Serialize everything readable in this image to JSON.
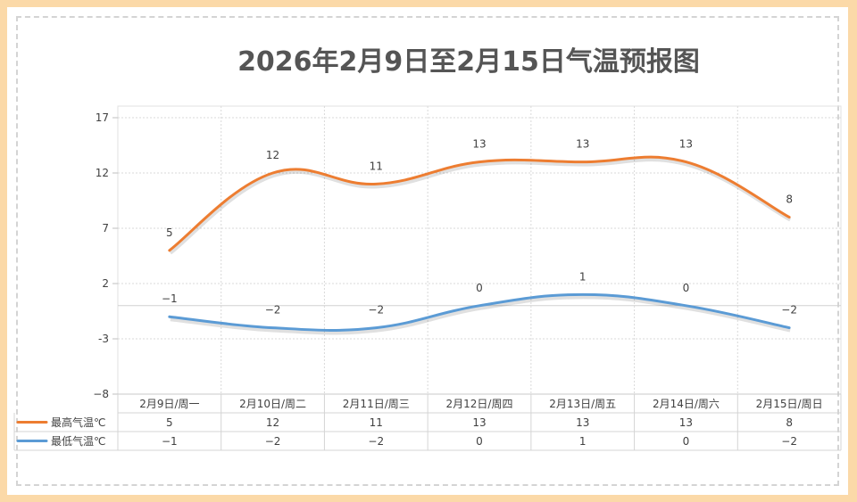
{
  "chart_data": {
    "type": "line",
    "title": "2026年2月9日至2月15日气温预报图",
    "categories": [
      "2月9日/周一",
      "2月10日/周二",
      "2月11日/周三",
      "2月12日/周四",
      "2月13日/周五",
      "2月14日/周六",
      "2月15日/周日"
    ],
    "series": [
      {
        "name": "最高气温℃",
        "values": [
          5,
          12,
          11,
          13,
          13,
          13,
          8
        ],
        "labels": [
          "5",
          "12",
          "11",
          "13",
          "13",
          "13",
          "8"
        ],
        "color": "#ed7d31"
      },
      {
        "name": "最低气温℃",
        "values": [
          -1,
          -2,
          -2,
          0,
          1,
          0,
          -2
        ],
        "labels": [
          "−1",
          "−2",
          "−2",
          "0",
          "1",
          "0",
          "−2"
        ],
        "color": "#5b9bd5"
      }
    ],
    "ylim": [
      -8,
      17
    ],
    "yticks": [
      17,
      12,
      7,
      2,
      -3,
      -8
    ],
    "ytick_labels": [
      "17",
      "12",
      "7",
      "2",
      "-3",
      "−8"
    ],
    "smooth": true,
    "grid": true,
    "data_table": true,
    "legend": "data-table"
  }
}
